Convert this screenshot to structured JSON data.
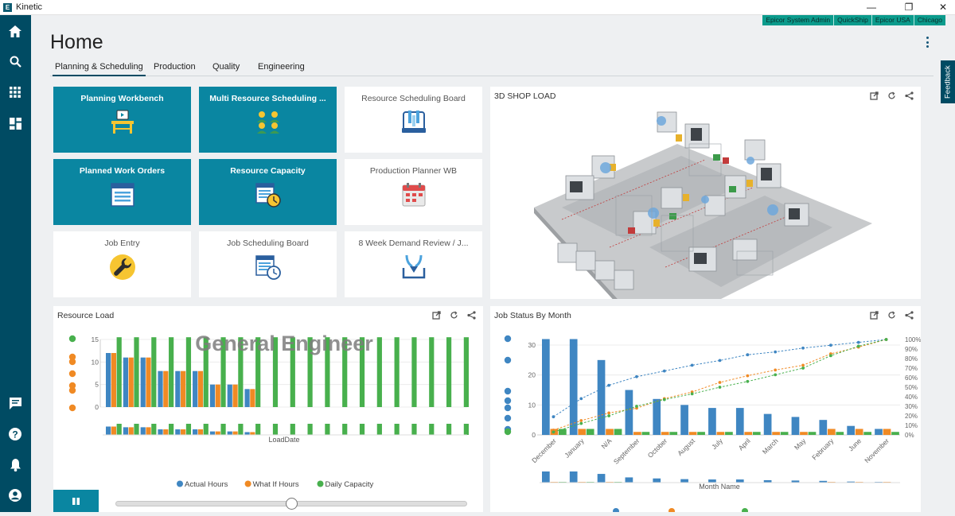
{
  "app": {
    "name": "Kinetic",
    "logo_letter": "E"
  },
  "window_controls": {
    "minimize": "—",
    "restore": "❐",
    "close": "✕"
  },
  "user_context": [
    "Epicor System Admin",
    "QuickShip",
    "Epicor USA",
    "Chicago"
  ],
  "page": {
    "title": "Home"
  },
  "tabs": [
    {
      "label": "Planning & Scheduling",
      "active": true
    },
    {
      "label": "Production",
      "active": false
    },
    {
      "label": "Quality",
      "active": false
    },
    {
      "label": "Engineering",
      "active": false
    }
  ],
  "feedback_label": "Feedback",
  "tiles": [
    {
      "label": "Planning Workbench",
      "style": "dark",
      "icon": "workbench-icon"
    },
    {
      "label": "Multi Resource Scheduling ...",
      "style": "dark",
      "icon": "team-icon"
    },
    {
      "label": "Resource Scheduling Board",
      "style": "light",
      "icon": "scheduling-board-icon"
    },
    {
      "label": "Planned Work Orders",
      "style": "dark",
      "icon": "work-orders-icon"
    },
    {
      "label": "Resource Capacity",
      "style": "dark",
      "icon": "capacity-clock-icon"
    },
    {
      "label": "Production Planner WB",
      "style": "light",
      "icon": "calendar-icon"
    },
    {
      "label": "Job Entry",
      "style": "light",
      "icon": "wrench-icon"
    },
    {
      "label": "Job Scheduling Board",
      "style": "light",
      "icon": "schedule-clock-icon"
    },
    {
      "label": "8 Week Demand Review / J...",
      "style": "light",
      "icon": "merge-arrows-icon"
    }
  ],
  "panels": {
    "shop_load": {
      "title": "3D SHOP LOAD"
    },
    "resource_load": {
      "title": "Resource Load",
      "watermark": "General Engineer"
    },
    "job_status": {
      "title": "Job Status By Month"
    }
  },
  "colors": {
    "blue": "#3f86c2",
    "orange": "#f08a24",
    "green": "#48b04d",
    "teal": "#0a86a1",
    "nav": "#004b63"
  },
  "chart_data": [
    {
      "type": "bar",
      "title": "",
      "xlabel": "LoadDate",
      "ylabel": "",
      "ylim": [
        0,
        15
      ],
      "yticks": [
        0,
        5,
        10,
        15
      ],
      "watermark": "General Engineer",
      "series": [
        {
          "name": "Actual Hours",
          "color": "#3f86c2",
          "values": [
            12,
            11,
            11,
            8,
            8,
            8,
            5,
            5,
            4,
            0,
            0,
            0,
            0,
            0,
            0,
            0,
            0,
            0,
            0,
            0,
            0
          ]
        },
        {
          "name": "What If Hours",
          "color": "#f08a24",
          "values": [
            12,
            11,
            11,
            8,
            8,
            8,
            5,
            5,
            4,
            0,
            0,
            0,
            0,
            0,
            0,
            0,
            0,
            0,
            0,
            0,
            0
          ]
        },
        {
          "name": "Daily Capacity",
          "color": "#48b04d",
          "values": [
            16,
            16,
            16,
            16,
            16,
            16,
            16,
            16,
            16,
            16,
            16,
            16,
            16,
            16,
            16,
            16,
            16,
            16,
            16,
            16,
            16
          ]
        }
      ],
      "legend": "bottom"
    },
    {
      "type": "bar",
      "title": "",
      "xlabel": "Month Name",
      "categories": [
        "December",
        "January",
        "N/A",
        "September",
        "October",
        "August",
        "July",
        "April",
        "March",
        "May",
        "February",
        "June",
        "November"
      ],
      "ylim": [
        0,
        30
      ],
      "yticks": [
        0,
        10,
        20,
        30
      ],
      "y2ticks": [
        "0%",
        "10%",
        "20%",
        "30%",
        "40%",
        "50%",
        "60%",
        "70%",
        "80%",
        "90%",
        "100%"
      ],
      "series": [
        {
          "name": "",
          "color": "#3f86c2",
          "values": [
            32,
            32,
            25,
            15,
            12,
            10,
            9,
            9,
            7,
            6,
            5,
            3,
            2
          ]
        },
        {
          "name": "",
          "color": "#f08a24",
          "values": [
            2,
            2,
            2,
            1,
            1,
            1,
            1,
            1,
            1,
            1,
            2,
            2,
            2
          ]
        },
        {
          "name": "",
          "color": "#48b04d",
          "values": [
            2,
            2,
            2,
            1,
            1,
            1,
            1,
            1,
            1,
            1,
            1,
            1,
            1
          ]
        }
      ],
      "cumulative_percent": [
        {
          "color": "#3f86c2",
          "values": [
            19,
            38,
            52,
            61,
            67,
            73,
            78,
            84,
            87,
            91,
            94,
            97,
            100
          ]
        },
        {
          "color": "#f08a24",
          "values": [
            5,
            15,
            23,
            28,
            38,
            45,
            55,
            62,
            68,
            73,
            85,
            92,
            100
          ]
        },
        {
          "color": "#48b04d",
          "values": [
            3,
            12,
            20,
            30,
            37,
            43,
            50,
            56,
            63,
            70,
            83,
            93,
            100
          ]
        }
      ]
    }
  ]
}
